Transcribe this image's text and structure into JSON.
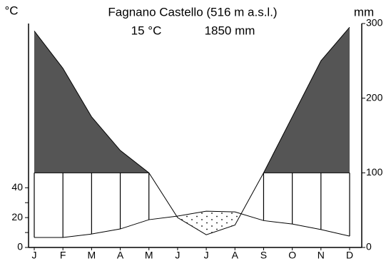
{
  "chart_data": {
    "type": "climate",
    "title": "Fagnano Castello (516 m a.s.l.)",
    "mean_temperature": "15 °C",
    "annual_precipitation": "1850 mm",
    "y_label": "°C",
    "y2_label": "mm",
    "categories": [
      "J",
      "F",
      "M",
      "A",
      "M",
      "J",
      "J",
      "A",
      "S",
      "O",
      "N",
      "D"
    ],
    "series": [
      {
        "name": "Temperature",
        "color": "#000000",
        "axis": "y",
        "values": [
          6.7,
          6.7,
          9,
          12.4,
          18.6,
          21,
          24.3,
          23.8,
          18,
          15.7,
          12,
          7.6
        ]
      },
      {
        "name": "Precipitation",
        "color": "#000000",
        "axis": "y2",
        "values": [
          290,
          240,
          175,
          130,
          100,
          40,
          17,
          30,
          100,
          175,
          250,
          295
        ]
      }
    ],
    "ylim": [
      0,
      150
    ],
    "yticks": [
      0,
      20,
      40
    ],
    "y_minor_ticks": [
      10,
      30
    ],
    "y2lim": [
      0,
      300
    ],
    "y2ticks": [
      0,
      100,
      200,
      300
    ],
    "humid_threshold": 100,
    "wet_color": "#555555"
  }
}
